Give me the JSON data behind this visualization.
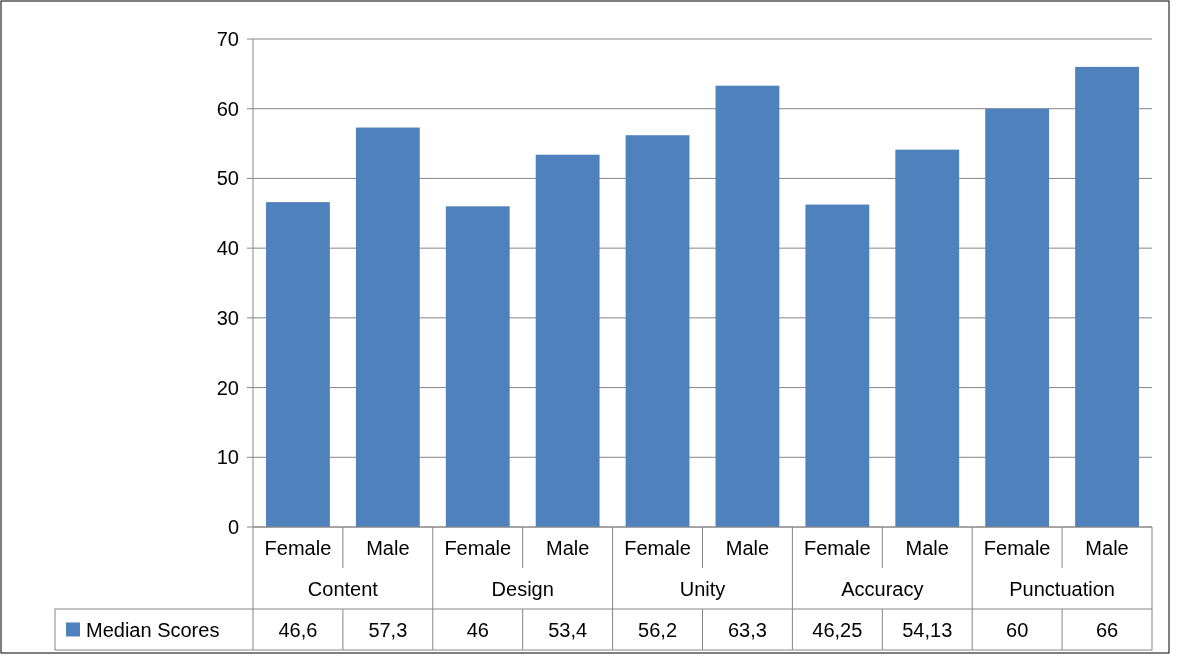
{
  "chart_data": {
    "type": "bar",
    "categories": [
      "Female",
      "Male",
      "Female",
      "Male",
      "Female",
      "Male",
      "Female",
      "Male",
      "Female",
      "Male"
    ],
    "annotations": [
      "Content",
      "Design",
      "Unity",
      "Accuracy",
      "Punctuation"
    ],
    "series": [
      {
        "name": "Median Scores",
        "color": "#4f81bd",
        "values": [
          46.6,
          57.3,
          46,
          53.4,
          56.2,
          63.3,
          46.25,
          54.13,
          60,
          66
        ],
        "value_labels": [
          "46,6",
          "57,3",
          "46",
          "53,4",
          "56,2",
          "63,3",
          "46,25",
          "54,13",
          "60",
          "66"
        ]
      }
    ],
    "ylim": [
      0,
      70
    ],
    "yticks": [
      0,
      10,
      20,
      30,
      40,
      50,
      60,
      70
    ],
    "grid": "y",
    "legend": "bottom"
  }
}
